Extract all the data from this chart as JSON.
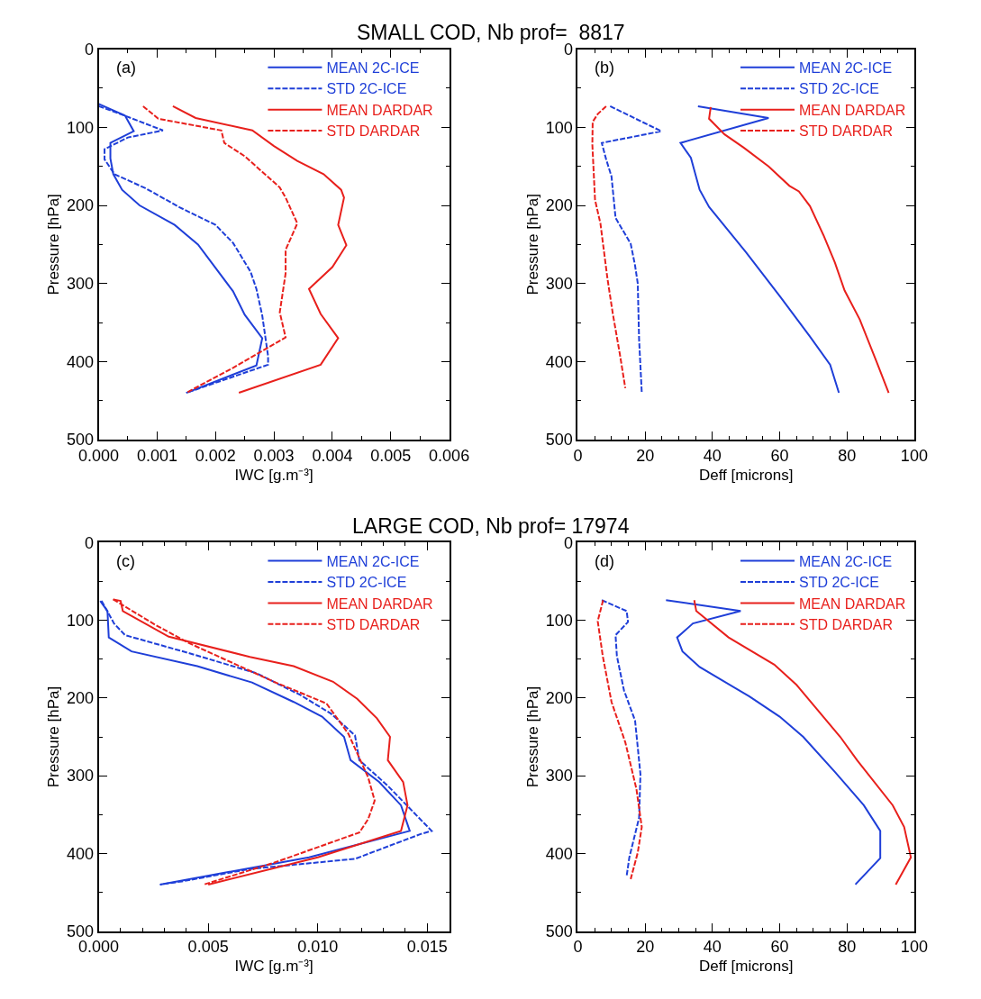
{
  "chart_data": [
    {
      "type": "line",
      "title": "SMALL COD, Nb prof=  8817",
      "xlabel": "IWC [g.m⁻³]",
      "ylabel": "Pressure [hPa]",
      "annotations": [
        "(a)"
      ],
      "xlim": [
        0,
        0.006
      ],
      "xticks": [
        {
          "value": 0,
          "label": "0.000"
        },
        {
          "value": 0.001,
          "label": "0.001"
        },
        {
          "value": 0.002,
          "label": "0.002"
        },
        {
          "value": 0.003,
          "label": "0.003"
        },
        {
          "value": 0.004,
          "label": "0.004"
        },
        {
          "value": 0.005,
          "label": "0.005"
        },
        {
          "value": 0.006,
          "label": "0.006"
        }
      ],
      "ylim": [
        500,
        0
      ],
      "yticks": [
        0,
        100,
        200,
        300,
        400,
        500
      ],
      "legend": "top right",
      "series": [
        {
          "name": "MEAN 2C-ICE",
          "color": "#1f3fd8",
          "line_style": "solid",
          "x": [
            0,
            0.00045,
            0.0006,
            0.0002,
            0.0002,
            0.00025,
            0.0004,
            0.0007,
            0.0013,
            0.0017,
            0.002,
            0.0023,
            0.0025,
            0.0028,
            0.0027,
            0.0015
          ],
          "values": [
            70,
            85,
            105,
            120,
            140,
            160,
            180,
            200,
            225,
            250,
            280,
            310,
            340,
            370,
            405,
            440
          ]
        },
        {
          "name": "STD 2C-ICE",
          "color": "#1f3fd8",
          "line_style": "dashed",
          "x": [
            0,
            0.00034,
            0.0011,
            0.0005,
            0.0001,
            0.0001,
            0.00027,
            0.0008,
            0.0014,
            0.0017,
            0.002,
            0.0023,
            0.0026,
            0.0027,
            0.0028,
            0.0029,
            0.0029,
            0.0015
          ],
          "values": [
            73,
            82,
            104,
            113,
            128,
            141,
            160,
            178,
            203,
            214,
            225,
            248,
            285,
            307,
            341,
            393,
            404,
            440
          ]
        },
        {
          "name": "MEAN DARDAR",
          "color": "#e8201c",
          "line_style": "solid",
          "x": [
            0.00127,
            0.00166,
            0.00263,
            0.003,
            0.0034,
            0.00385,
            0.00415,
            0.0042,
            0.0041,
            0.00424,
            0.004,
            0.0036,
            0.0038,
            0.0041,
            0.0038,
            0.0024
          ],
          "values": [
            73,
            88,
            104,
            124,
            143,
            160,
            180,
            190,
            225,
            251,
            279,
            307,
            339,
            370,
            404,
            440
          ]
        },
        {
          "name": "STD DARDAR",
          "color": "#e8201c",
          "line_style": "dashed",
          "x": [
            0.00076,
            0.00102,
            0.0021,
            0.00215,
            0.0025,
            0.0031,
            0.0032,
            0.0034,
            0.0032,
            0.0032,
            0.0031,
            0.0032,
            0.0023,
            0.0015
          ],
          "values": [
            73,
            89,
            104,
            120,
            137,
            177,
            190,
            223,
            257,
            287,
            337,
            369,
            408,
            440
          ]
        }
      ]
    },
    {
      "type": "line",
      "xlabel": "Deff [microns]",
      "ylabel": "Pressure [hPa]",
      "annotations": [
        "(b)"
      ],
      "xlim": [
        0,
        100
      ],
      "xticks": [
        0,
        20,
        40,
        60,
        80,
        100
      ],
      "ylim": [
        500,
        0
      ],
      "yticks": [
        0,
        100,
        200,
        300,
        400,
        500
      ],
      "legend": "top right",
      "series": [
        {
          "name": "MEAN 2C-ICE",
          "color": "#1f3fd8",
          "line_style": "solid",
          "x": [
            35.7,
            56.7,
            30.5,
            33.6,
            36.2,
            39,
            50,
            60,
            69,
            75,
            77.6
          ],
          "values": [
            73,
            88,
            120,
            139,
            180,
            202,
            260,
            316,
            368,
            404,
            440
          ]
        },
        {
          "name": "STD 2C-ICE",
          "color": "#1f3fd8",
          "line_style": "dashed",
          "x": [
            9.6,
            24.8,
            7.1,
            8.4,
            10,
            11.2,
            15.7,
            17,
            17.8,
            18.2,
            19
          ],
          "values": [
            73,
            105,
            120,
            141,
            163,
            216,
            249,
            277,
            300,
            372,
            440
          ]
        },
        {
          "name": "MEAN DARDAR",
          "color": "#e8201c",
          "line_style": "solid",
          "x": [
            39.5,
            39,
            43.6,
            49.3,
            56.7,
            62.9,
            65.7,
            69,
            73,
            76.4,
            79.3,
            83.8,
            88.7,
            92.4
          ],
          "values": [
            74,
            89,
            109,
            126,
            150,
            175,
            182,
            201,
            238,
            273,
            309,
            346,
            399,
            440
          ]
        },
        {
          "name": "STD DARDAR",
          "color": "#e8201c",
          "line_style": "dashed",
          "x": [
            8.4,
            5.9,
            4.4,
            4.3,
            5.1,
            6.7,
            8.8,
            10.4,
            12.5,
            14.1
          ],
          "values": [
            73,
            83,
            93,
            122,
            193,
            223,
            294,
            339,
            391,
            434
          ]
        }
      ]
    },
    {
      "type": "line",
      "title": "LARGE COD, Nb prof= 17974",
      "xlabel": "IWC [g.m⁻³]",
      "ylabel": "Pressure [hPa]",
      "annotations": [
        "(c)"
      ],
      "xlim": [
        0,
        0.016
      ],
      "xticks": [
        {
          "value": 0,
          "label": "0.000"
        },
        {
          "value": 0.005,
          "label": "0.005"
        },
        {
          "value": 0.01,
          "label": "0.010"
        },
        {
          "value": 0.015,
          "label": "0.015"
        }
      ],
      "ylim": [
        500,
        0
      ],
      "yticks": [
        0,
        100,
        200,
        300,
        400,
        500
      ],
      "legend": "top right",
      "series": [
        {
          "name": "MEAN 2C-ICE",
          "color": "#1f3fd8",
          "line_style": "solid",
          "x": [
            7e-05,
            0.0004,
            0.00046,
            0.0015,
            0.0045,
            0.007,
            0.0089,
            0.0102,
            0.0112,
            0.0115,
            0.0128,
            0.0138,
            0.0142,
            0.0096,
            0.0028
          ],
          "values": [
            75,
            88,
            122,
            140,
            159,
            180,
            205,
            224,
            250,
            280,
            308,
            338,
            371,
            405,
            440
          ]
        },
        {
          "name": "STD 2C-ICE",
          "color": "#1f3fd8",
          "line_style": "dashed",
          "x": [
            0.00013,
            0.0007,
            0.0012,
            0.0041,
            0.0072,
            0.0092,
            0.0106,
            0.0117,
            0.0119,
            0.0132,
            0.0152,
            0.0147,
            0.0117,
            0.0069,
            0.0038,
            0.0028
          ],
          "values": [
            75,
            104,
            119,
            142,
            168,
            196,
            220,
            248,
            280,
            313,
            371,
            375,
            407,
            420,
            436,
            440
          ]
        },
        {
          "name": "MEAN DARDAR",
          "color": "#e8201c",
          "line_style": "solid",
          "x": [
            0.00066,
            0.001,
            0.0011,
            0.0032,
            0.0069,
            0.0089,
            0.0107,
            0.0118,
            0.0127,
            0.0133,
            0.0132,
            0.0139,
            0.0141,
            0.0138,
            0.01,
            0.005
          ],
          "values": [
            73,
            75,
            88,
            121,
            147,
            159,
            179,
            201,
            226,
            250,
            280,
            308,
            338,
            371,
            405,
            440
          ]
        },
        {
          "name": "STD DARDAR",
          "color": "#e8201c",
          "line_style": "dashed",
          "x": [
            0.00066,
            0.0026,
            0.0041,
            0.008,
            0.0104,
            0.0114,
            0.0123,
            0.0126,
            0.0123,
            0.0119,
            0.008,
            0.0048
          ],
          "values": [
            73,
            106,
            129,
            179,
            207,
            246,
            302,
            332,
            356,
            373,
            412,
            440
          ]
        }
      ]
    },
    {
      "type": "line",
      "xlabel": "Deff [microns]",
      "ylabel": "Pressure [hPa]",
      "annotations": [
        "(d)"
      ],
      "xlim": [
        0,
        100
      ],
      "xticks": [
        0,
        20,
        40,
        60,
        80,
        100
      ],
      "ylim": [
        500,
        0
      ],
      "yticks": [
        0,
        100,
        200,
        300,
        400,
        500
      ],
      "legend": "top right",
      "series": [
        {
          "name": "MEAN 2C-ICE",
          "color": "#1f3fd8",
          "line_style": "solid",
          "x": [
            26.2,
            48.4,
            34.2,
            29.5,
            31.1,
            36.2,
            51,
            60,
            67,
            76.4,
            85,
            89.9,
            89.9,
            82.5
          ],
          "values": [
            74,
            88,
            104,
            122,
            140,
            160,
            198,
            224,
            250,
            295,
            338,
            371,
            406,
            440
          ]
        },
        {
          "name": "STD 2C-ICE",
          "color": "#1f3fd8",
          "line_style": "dashed",
          "x": [
            7.1,
            14.5,
            14.9,
            11.2,
            11.6,
            13.7,
            17,
            18.6,
            18.2,
            15.3,
            14.5
          ],
          "values": [
            74,
            88,
            102,
            119,
            146,
            190,
            229,
            298,
            354,
            405,
            429
          ]
        },
        {
          "name": "MEAN DARDAR",
          "color": "#e8201c",
          "line_style": "solid",
          "x": [
            34.6,
            35.2,
            44.8,
            58.4,
            65,
            78,
            83,
            93.6,
            97,
            99,
            94.5
          ],
          "values": [
            74,
            88,
            122,
            157,
            183,
            250,
            280,
            338,
            366,
            405,
            440
          ]
        },
        {
          "name": "STD DARDAR",
          "color": "#e8201c",
          "line_style": "dashed",
          "x": [
            7.5,
            5.9,
            7.4,
            10,
            14.1,
            17.4,
            19,
            17.8,
            15.7
          ],
          "values": [
            74,
            101,
            146,
            205,
            257,
            317,
            366,
            399,
            433
          ]
        }
      ]
    }
  ]
}
